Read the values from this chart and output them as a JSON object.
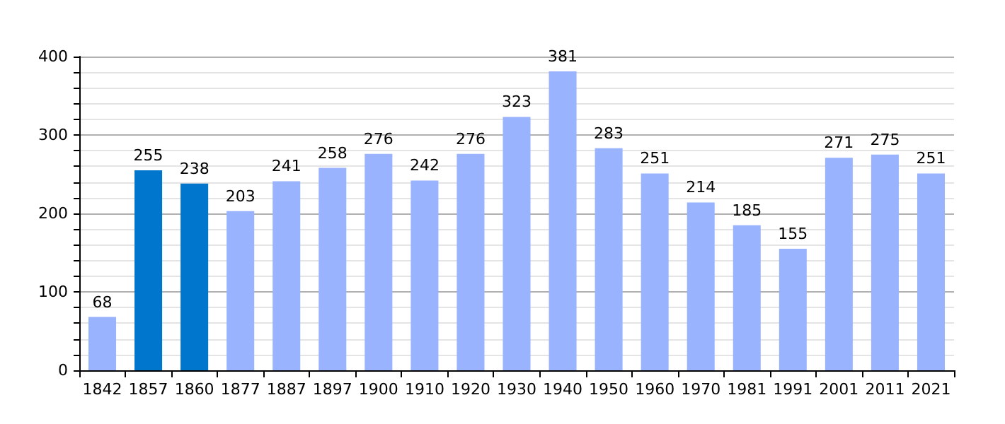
{
  "chart_data": {
    "type": "bar",
    "categories": [
      "1842",
      "1857",
      "1860",
      "1877",
      "1887",
      "1897",
      "1900",
      "1910",
      "1920",
      "1930",
      "1940",
      "1950",
      "1960",
      "1970",
      "1981",
      "1991",
      "2001",
      "2011",
      "2021"
    ],
    "values": [
      68,
      255,
      238,
      203,
      241,
      258,
      276,
      242,
      276,
      323,
      381,
      283,
      251,
      214,
      185,
      155,
      271,
      275,
      251
    ],
    "colors": [
      "#99b3ff",
      "#0077cc",
      "#0077cc",
      "#99b3ff",
      "#99b3ff",
      "#99b3ff",
      "#99b3ff",
      "#99b3ff",
      "#99b3ff",
      "#99b3ff",
      "#99b3ff",
      "#99b3ff",
      "#99b3ff",
      "#99b3ff",
      "#99b3ff",
      "#99b3ff",
      "#99b3ff",
      "#99b3ff",
      "#99b3ff"
    ],
    "ylim": [
      0,
      400
    ],
    "yticks": [
      0,
      {
        "value": 20,
        "label": null
      },
      {
        "value": 40,
        "label": null
      },
      {
        "value": 60,
        "label": null
      },
      {
        "value": 80,
        "label": null
      },
      100,
      {
        "value": 120,
        "label": null
      },
      {
        "value": 140,
        "label": null
      },
      {
        "value": 160,
        "label": null
      },
      {
        "value": 180,
        "label": null
      },
      200,
      {
        "value": 220,
        "label": null
      },
      {
        "value": 240,
        "label": null
      },
      {
        "value": 260,
        "label": null
      },
      {
        "value": 280,
        "label": null
      },
      300,
      {
        "value": 320,
        "label": null
      },
      {
        "value": 340,
        "label": null
      },
      {
        "value": 360,
        "label": null
      },
      {
        "value": 380,
        "label": null
      },
      400
    ],
    "grid": "y",
    "data_labels": true
  }
}
